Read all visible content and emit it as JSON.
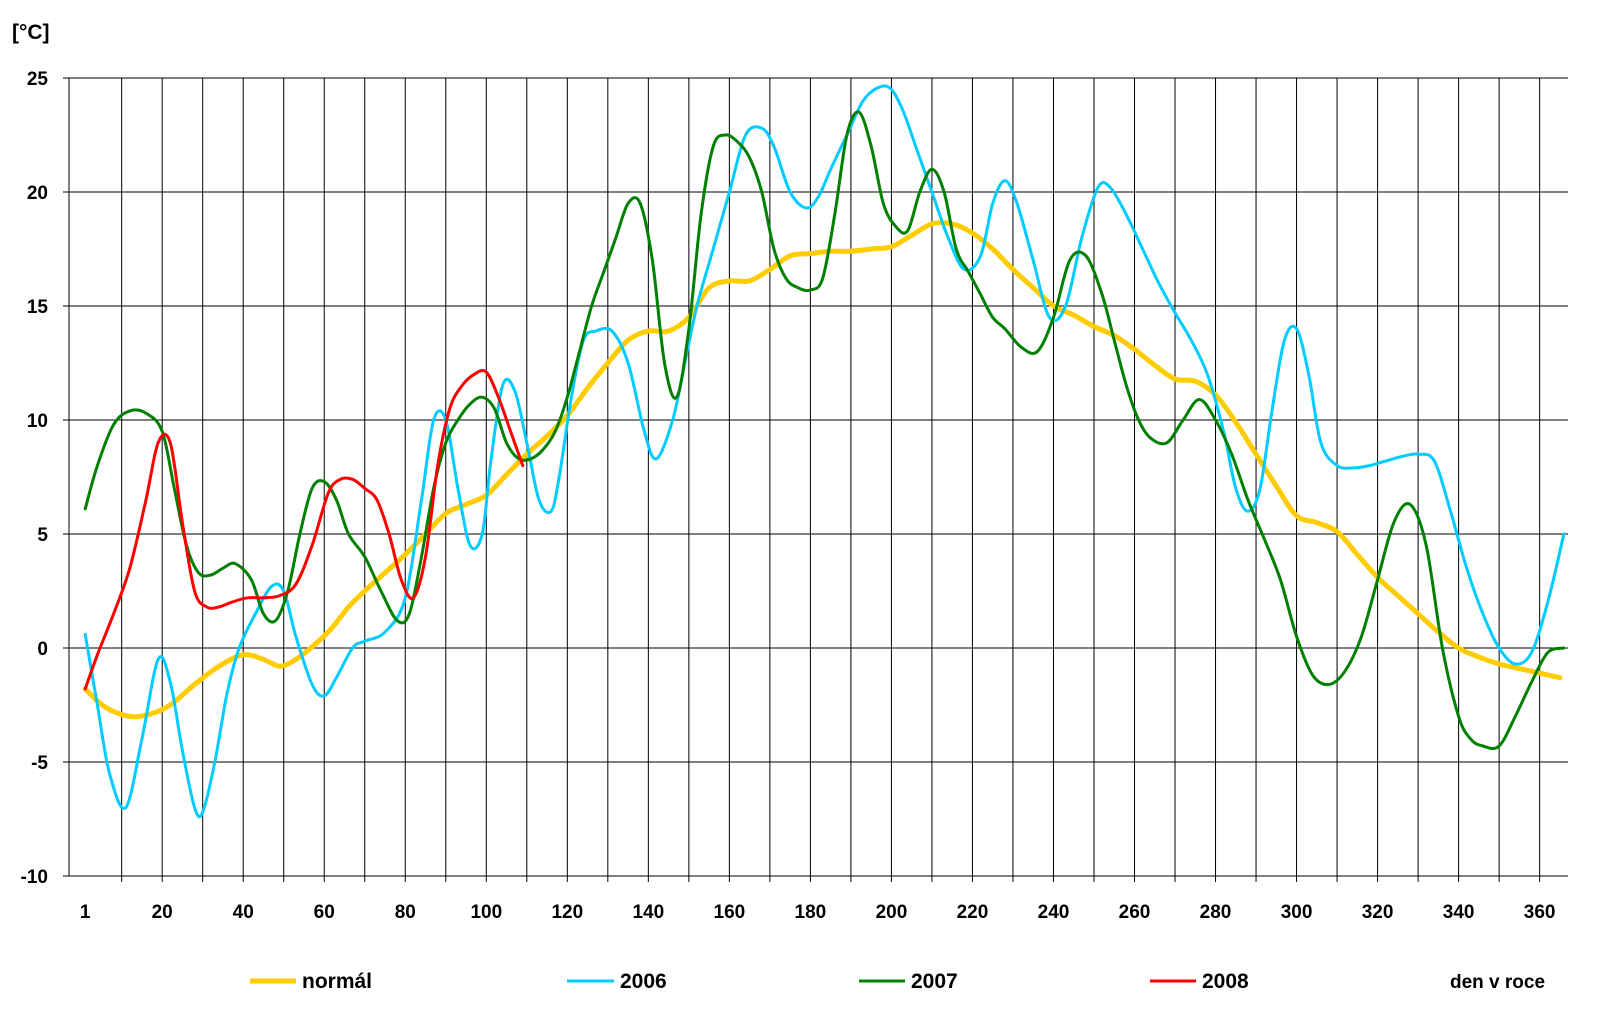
{
  "chart_data": {
    "type": "line",
    "ylabel": "[°C]",
    "xlabel": "den v roce",
    "ylim": [
      -10,
      25
    ],
    "xlim": [
      -3,
      367
    ],
    "y_ticks": [
      25,
      20,
      15,
      10,
      5,
      0,
      -5,
      -10
    ],
    "x_tick_labels": [
      "1",
      "20",
      "40",
      "60",
      "80",
      "100",
      "120",
      "140",
      "160",
      "180",
      "200",
      "220",
      "240",
      "260",
      "280",
      "300",
      "320",
      "340",
      "360"
    ],
    "x_tick_values": [
      1,
      20,
      40,
      60,
      80,
      100,
      120,
      140,
      160,
      180,
      200,
      220,
      240,
      260,
      280,
      300,
      320,
      340,
      360
    ],
    "vertical_grid_step": 10,
    "grid": true,
    "legend_position": "bottom",
    "series": [
      {
        "name": "normál",
        "color": "#FFCC00",
        "stroke_width": 5,
        "x": [
          1,
          6,
          12,
          17,
          22,
          28,
          34,
          40,
          45,
          49,
          53,
          58,
          62,
          66,
          70,
          75,
          80,
          85,
          90,
          95,
          100,
          105,
          110,
          115,
          120,
          125,
          130,
          135,
          140,
          145,
          150,
          155,
          160,
          165,
          170,
          175,
          180,
          185,
          190,
          195,
          200,
          205,
          210,
          215,
          220,
          225,
          230,
          235,
          240,
          245,
          250,
          255,
          260,
          265,
          270,
          275,
          280,
          285,
          290,
          295,
          300,
          305,
          310,
          315,
          320,
          325,
          330,
          335,
          340,
          345,
          350,
          355,
          360,
          365
        ],
        "y": [
          -1.8,
          -2.6,
          -3.0,
          -2.9,
          -2.5,
          -1.6,
          -0.8,
          -0.3,
          -0.5,
          -0.8,
          -0.5,
          0.2,
          0.9,
          1.8,
          2.5,
          3.3,
          4.1,
          5.0,
          5.9,
          6.3,
          6.7,
          7.6,
          8.5,
          9.3,
          10.2,
          11.4,
          12.5,
          13.5,
          13.9,
          13.9,
          14.5,
          15.8,
          16.1,
          16.1,
          16.6,
          17.2,
          17.3,
          17.4,
          17.4,
          17.5,
          17.6,
          18.1,
          18.6,
          18.6,
          18.2,
          17.5,
          16.6,
          15.8,
          15.0,
          14.6,
          14.1,
          13.7,
          13.1,
          12.4,
          11.8,
          11.7,
          11.1,
          9.9,
          8.5,
          7.1,
          5.8,
          5.5,
          5.1,
          4.1,
          3.1,
          2.3,
          1.5,
          0.7,
          0.0,
          -0.4,
          -0.7,
          -0.9,
          -1.1,
          -1.3
        ]
      },
      {
        "name": "2006",
        "color": "#00CCFF",
        "stroke_width": 3,
        "x": [
          1,
          4,
          7,
          11,
          15,
          19,
          22,
          25,
          28,
          30,
          33,
          36,
          39,
          43,
          47,
          50,
          53,
          57,
          60,
          63,
          67,
          70,
          75,
          80,
          84,
          87,
          90,
          93,
          96,
          99,
          101,
          104,
          107,
          110,
          113,
          116,
          118,
          121,
          124,
          127,
          131,
          135,
          139,
          142,
          146,
          149,
          152,
          156,
          160,
          164,
          168,
          171,
          175,
          179,
          182,
          185,
          189,
          193,
          197,
          200,
          203,
          206,
          210,
          214,
          218,
          222,
          225,
          228,
          231,
          235,
          239,
          243,
          247,
          251,
          254,
          258,
          262,
          266,
          270,
          274,
          278,
          282,
          285,
          288,
          291,
          294,
          297,
          300,
          303,
          306,
          310,
          314,
          318,
          322,
          326,
          330,
          334,
          338,
          342,
          346,
          350,
          354,
          358,
          362,
          366
        ],
        "y": [
          0.6,
          -2.5,
          -5.5,
          -7.0,
          -4.0,
          -0.5,
          -1.5,
          -4.5,
          -7.0,
          -7.2,
          -5.0,
          -2.0,
          0.0,
          1.5,
          2.7,
          2.5,
          0.5,
          -1.6,
          -2.1,
          -1.3,
          0.0,
          0.3,
          0.7,
          2.2,
          6.5,
          10.0,
          10.0,
          7.0,
          4.5,
          5.0,
          8.0,
          11.5,
          11.3,
          9.0,
          6.5,
          6.0,
          7.5,
          11.0,
          13.5,
          13.9,
          13.9,
          12.5,
          9.5,
          8.3,
          10.0,
          12.5,
          15.0,
          17.5,
          20.0,
          22.5,
          22.8,
          22.0,
          20.0,
          19.3,
          19.8,
          21.0,
          22.5,
          24.0,
          24.6,
          24.5,
          23.5,
          22.0,
          20.0,
          18.0,
          16.6,
          17.2,
          19.5,
          20.5,
          19.5,
          17.0,
          14.5,
          15.0,
          18.0,
          20.2,
          20.2,
          19.0,
          17.5,
          16.0,
          14.7,
          13.5,
          12.0,
          9.5,
          7.0,
          6.0,
          7.0,
          10.5,
          13.5,
          14.0,
          12.0,
          9.0,
          8.0,
          7.9,
          8.0,
          8.2,
          8.4,
          8.5,
          8.2,
          6.0,
          3.5,
          1.5,
          0.0,
          -0.7,
          -0.2,
          2.0,
          5.0
        ]
      },
      {
        "name": "2007",
        "color": "#008000",
        "stroke_width": 3,
        "x": [
          1,
          4,
          8,
          12,
          16,
          20,
          23,
          26,
          29,
          32,
          35,
          38,
          42,
          45,
          48,
          51,
          54,
          57,
          60,
          63,
          66,
          70,
          74,
          78,
          81,
          84,
          87,
          90,
          93,
          96,
          99,
          102,
          105,
          108,
          111,
          114,
          117,
          120,
          123,
          126,
          129,
          132,
          135,
          138,
          141,
          144,
          147,
          150,
          153,
          156,
          159,
          162,
          165,
          168,
          171,
          174,
          177,
          180,
          183,
          186,
          189,
          192,
          195,
          198,
          201,
          204,
          207,
          210,
          213,
          216,
          219,
          222,
          225,
          228,
          232,
          236,
          240,
          244,
          248,
          252,
          255,
          258,
          261,
          264,
          268,
          272,
          276,
          280,
          284,
          288,
          292,
          296,
          300,
          304,
          308,
          312,
          316,
          320,
          324,
          328,
          332,
          336,
          340,
          343,
          346,
          350,
          354,
          358,
          362,
          366
        ],
        "y": [
          6.1,
          8.0,
          9.8,
          10.4,
          10.3,
          9.5,
          7.0,
          4.5,
          3.3,
          3.2,
          3.5,
          3.7,
          3.0,
          1.5,
          1.2,
          2.5,
          5.0,
          7.0,
          7.3,
          6.5,
          5.0,
          4.0,
          2.5,
          1.2,
          1.5,
          4.0,
          7.0,
          9.0,
          10.0,
          10.7,
          11.0,
          10.5,
          9.0,
          8.3,
          8.3,
          8.7,
          9.5,
          11.0,
          13.0,
          15.0,
          16.5,
          18.0,
          19.5,
          19.5,
          17.0,
          12.5,
          11.0,
          14.0,
          19.0,
          22.0,
          22.5,
          22.2,
          21.5,
          20.0,
          17.5,
          16.2,
          15.8,
          15.7,
          16.2,
          19.0,
          22.5,
          23.5,
          22.0,
          19.5,
          18.5,
          18.3,
          20.0,
          21.0,
          20.0,
          17.5,
          16.5,
          15.5,
          14.5,
          14.0,
          13.2,
          13.0,
          14.5,
          17.0,
          17.2,
          15.5,
          13.5,
          11.5,
          10.0,
          9.2,
          9.0,
          10.0,
          10.9,
          10.0,
          8.5,
          6.5,
          4.8,
          3.0,
          0.5,
          -1.2,
          -1.6,
          -1.0,
          0.5,
          3.0,
          5.5,
          6.3,
          4.5,
          0.0,
          -3.0,
          -4.0,
          -4.3,
          -4.3,
          -3.0,
          -1.5,
          -0.2,
          0.0
        ]
      },
      {
        "name": "2008",
        "color": "#FF0000",
        "stroke_width": 3,
        "x": [
          1,
          4,
          8,
          12,
          16,
          19,
          22,
          25,
          28,
          31,
          34,
          37,
          41,
          45,
          49,
          53,
          57,
          61,
          64,
          67,
          70,
          73,
          76,
          79,
          82,
          85,
          88,
          91,
          94,
          97,
          100,
          103,
          106,
          109
        ],
        "y": [
          -1.8,
          -0.3,
          1.5,
          3.5,
          6.5,
          9.0,
          9.0,
          5.5,
          2.5,
          1.8,
          1.8,
          2.0,
          2.2,
          2.2,
          2.3,
          2.8,
          4.5,
          6.8,
          7.4,
          7.4,
          7.0,
          6.5,
          5.0,
          3.0,
          2.2,
          4.0,
          8.0,
          10.5,
          11.5,
          12.0,
          12.1,
          11.0,
          9.5,
          8.0
        ]
      }
    ]
  }
}
